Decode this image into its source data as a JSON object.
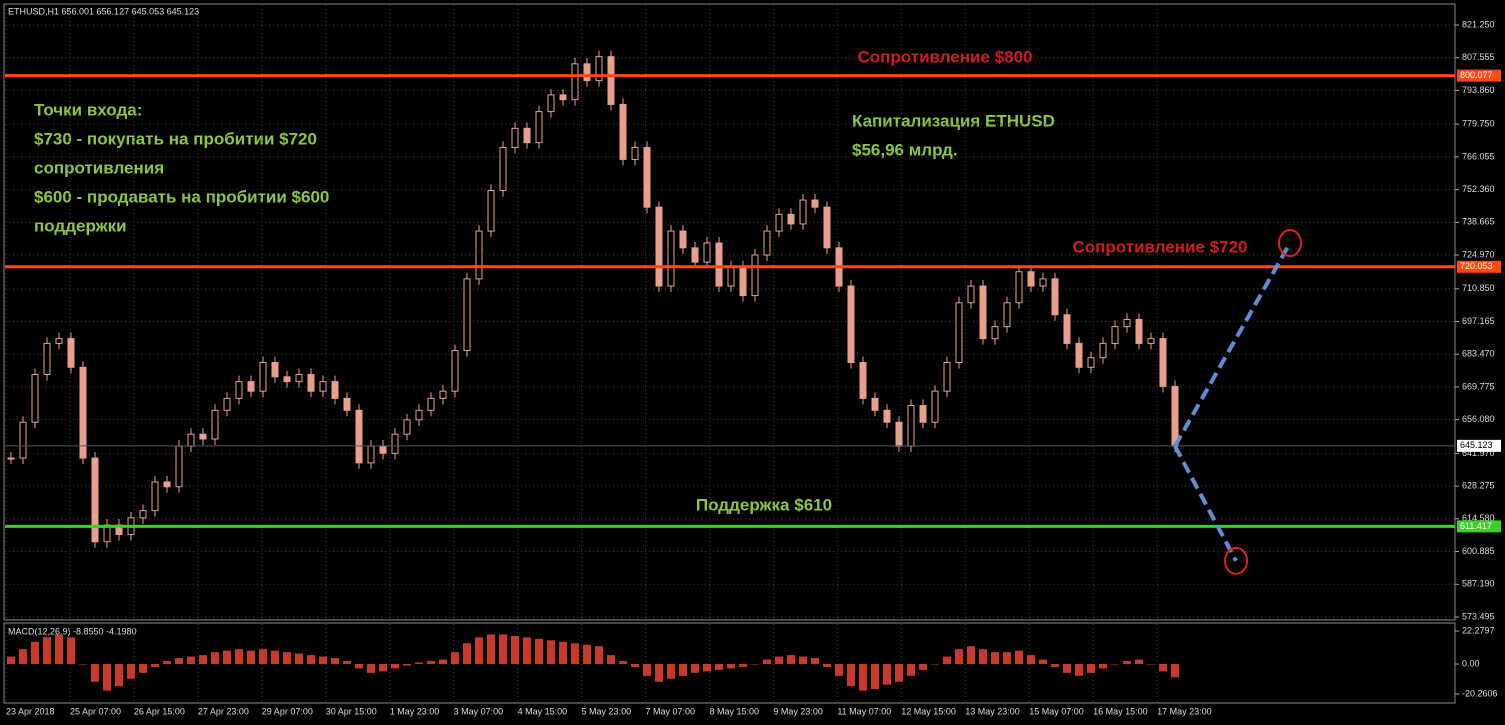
{
  "header": "ETHUSD,H1  656.001 656.127 645.053 645.123",
  "annotations": {
    "resistance_800": "Сопротивление $800",
    "resistance_720": "Сопротивление $720",
    "support_610": "Поддержка $610",
    "entry": [
      "Точки входа:",
      "$730 - покупать на пробитии $720",
      "сопротивления",
      "$600 - продавать на пробитии $600",
      "поддержки"
    ],
    "cap": [
      "Капитализация ETHUSD",
      "$56,96 млрд."
    ]
  },
  "chart_data": {
    "type": "candlestick",
    "color": "#e8a08c",
    "closes": [
      640,
      655,
      675,
      688,
      690,
      678,
      640,
      605,
      612,
      608,
      615,
      618,
      630,
      628,
      645,
      650,
      648,
      660,
      665,
      672,
      668,
      680,
      674,
      672,
      675,
      668,
      672,
      665,
      660,
      638,
      645,
      642,
      650,
      656,
      660,
      665,
      668,
      685,
      715,
      735,
      752,
      770,
      778,
      772,
      785,
      792,
      790,
      805,
      798,
      808,
      788,
      765,
      770,
      745,
      712,
      735,
      728,
      722,
      730,
      712,
      720,
      708,
      725,
      735,
      742,
      738,
      748,
      745,
      728,
      712,
      680,
      665,
      660,
      655,
      645,
      662,
      655,
      668,
      680,
      705,
      712,
      690,
      695,
      705,
      718,
      712,
      715,
      700,
      688,
      678,
      682,
      688,
      695,
      698,
      688,
      690,
      670,
      645
    ],
    "ylim": [
      572.24,
      829.62
    ],
    "yticks": [
      {
        "value": 821.25,
        "label": "821.250"
      },
      {
        "value": 807.555,
        "label": "807.555"
      },
      {
        "value": 793.86,
        "label": "793.860"
      },
      {
        "value": 779.75,
        "label": "779.750"
      },
      {
        "value": 766.055,
        "label": "766.055"
      },
      {
        "value": 752.36,
        "label": "752.360"
      },
      {
        "value": 738.665,
        "label": "738.665"
      },
      {
        "value": 724.97,
        "label": "724.970"
      },
      {
        "value": 710.85,
        "label": "710.850"
      },
      {
        "value": 697.165,
        "label": "697.165"
      },
      {
        "value": 683.47,
        "label": "683.470"
      },
      {
        "value": 669.775,
        "label": "669.775"
      },
      {
        "value": 656.08,
        "label": "656.080"
      },
      {
        "value": 641.97,
        "label": "641.970"
      },
      {
        "value": 628.275,
        "label": "628.275"
      },
      {
        "value": 614.58,
        "label": "614.580"
      },
      {
        "value": 600.885,
        "label": "600.885"
      },
      {
        "value": 587.19,
        "label": "587.190"
      },
      {
        "value": 573.495,
        "label": "573.495"
      }
    ],
    "levels": [
      {
        "value": 800.077,
        "color": "#ff4a12"
      },
      {
        "value": 720.053,
        "color": "#ff4a12"
      },
      {
        "value": 611.417,
        "color": "#3ecf2c"
      }
    ],
    "current": 645.123,
    "projections": [
      730,
      597
    ],
    "x_labels": [
      "23 Apr 2018",
      "25 Apr 07:00",
      "26 Apr 15:00",
      "27 Apr 23:00",
      "29 Apr 07:00",
      "30 Apr 15:00",
      "1 May 23:00",
      "3 May 07:00",
      "4 May 15:00",
      "5 May 23:00",
      "7 May 07:00",
      "8 May 15:00",
      "9 May 23:00",
      "11 May 07:00",
      "12 May 15:00",
      "13 May 23:00",
      "15 May 07:00",
      "16 May 15:00",
      "17 May 23:00"
    ],
    "macd": {
      "label": "MACD(12,26,9) -8.8550 -4.1980",
      "color": "#c8382c",
      "values": [
        5,
        10,
        15,
        18,
        20,
        18,
        0,
        -12,
        -18,
        -15,
        -10,
        -6,
        -2,
        2,
        4,
        5,
        6,
        8,
        9,
        10,
        9,
        10,
        9,
        8,
        7,
        6,
        5,
        4,
        2,
        -3,
        -6,
        -5,
        -3,
        -1,
        1,
        2,
        3,
        8,
        14,
        18,
        20,
        20,
        19,
        18,
        17,
        16,
        15,
        14,
        13,
        12,
        6,
        2,
        -2,
        -8,
        -12,
        -10,
        -8,
        -6,
        -5,
        -4,
        -3,
        -2,
        0,
        3,
        5,
        6,
        5,
        4,
        -2,
        -8,
        -15,
        -18,
        -17,
        -14,
        -12,
        -8,
        -4,
        0,
        5,
        10,
        12,
        10,
        8,
        8,
        9,
        6,
        3,
        -2,
        -6,
        -8,
        -6,
        -3,
        0,
        2,
        3,
        0,
        -5,
        -9
      ],
      "ylim": [
        -26.34,
        27.0
      ],
      "yticks": [
        {
          "value": 22.2797,
          "label": "22.2797"
        },
        {
          "value": 0,
          "label": "0.00"
        },
        {
          "value": -20.2606,
          "label": "-20.2606"
        }
      ]
    }
  }
}
